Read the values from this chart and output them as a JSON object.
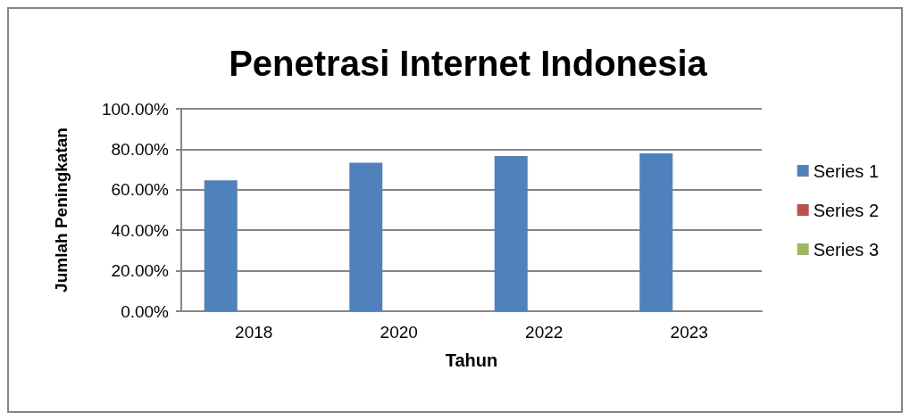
{
  "chart_data": {
    "type": "bar",
    "title": "Penetrasi Internet Indonesia",
    "xlabel": "Tahun",
    "ylabel": "Jumlah Peningkatan",
    "categories": [
      "2018",
      "2020",
      "2022",
      "2023"
    ],
    "series": [
      {
        "name": "Series 1",
        "color": "#4f81bd",
        "values": [
          64.6,
          73.4,
          76.6,
          78.0
        ]
      },
      {
        "name": "Series 2",
        "color": "#c0504d",
        "values": [
          null,
          null,
          null,
          null
        ]
      },
      {
        "name": "Series 3",
        "color": "#9bbb59",
        "values": [
          null,
          null,
          null,
          null
        ]
      }
    ],
    "ylim": [
      0,
      100
    ],
    "yticks": [
      {
        "value": 0,
        "label": "0.00%"
      },
      {
        "value": 20,
        "label": "20.00%"
      },
      {
        "value": 40,
        "label": "40.00%"
      },
      {
        "value": 60,
        "label": "60.00%"
      },
      {
        "value": 80,
        "label": "80.00%"
      },
      {
        "value": 100,
        "label": "100.00%"
      }
    ],
    "grid": "y",
    "legend": "right"
  }
}
